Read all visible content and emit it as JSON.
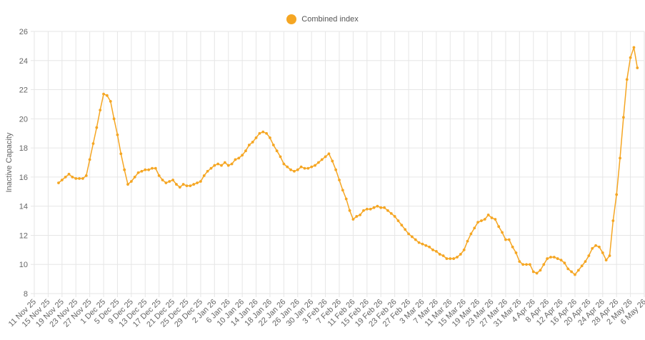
{
  "chart_data": {
    "type": "line",
    "title": "",
    "xlabel": "",
    "ylabel": "Inactive Capacity",
    "ylim": [
      8,
      26
    ],
    "yticks": [
      8,
      10,
      12,
      14,
      16,
      18,
      20,
      22,
      24,
      26
    ],
    "grid": true,
    "legend_position": "top-center",
    "x_tick_labels": [
      "11 Nov 25",
      "15 Nov 25",
      "19 Nov 25",
      "23 Nov 25",
      "27 Nov 25",
      "1 Dec 25",
      "5 Dec 25",
      "9 Dec 25",
      "13 Dec 25",
      "17 Dec 25",
      "21 Dec 25",
      "25 Dec 25",
      "29 Dec 25",
      "2 Jan 26",
      "6 Jan 26",
      "10 Jan 26",
      "14 Jan 26",
      "18 Jan 26",
      "22 Jan 26",
      "26 Jan 26",
      "30 Jan 26",
      "3 Feb 26",
      "7 Feb 26",
      "11 Feb 26",
      "15 Feb 26",
      "19 Feb 26",
      "23 Feb 26",
      "27 Feb 26",
      "3 Mar 26",
      "7 Mar 26",
      "11 Mar 26",
      "15 Mar 26",
      "19 Mar 26",
      "23 Mar 26",
      "27 Mar 26",
      "31 Mar 26",
      "4 Apr 26",
      "8 Apr 26",
      "12 Apr 26",
      "16 Apr 26",
      "20 Apr 26",
      "24 Apr 26",
      "28 Apr 26",
      "2 May 26",
      "6 May 26"
    ],
    "series": [
      {
        "name": "Combined index",
        "color": "#f5a623",
        "start_date": "18 Nov 25",
        "values": [
          15.6,
          15.8,
          16.0,
          16.2,
          16.0,
          15.9,
          15.9,
          15.9,
          16.1,
          17.2,
          18.3,
          19.4,
          20.6,
          21.7,
          21.6,
          21.2,
          20.0,
          18.9,
          17.6,
          16.5,
          15.5,
          15.7,
          16.0,
          16.3,
          16.4,
          16.5,
          16.5,
          16.6,
          16.6,
          16.1,
          15.8,
          15.6,
          15.7,
          15.8,
          15.5,
          15.3,
          15.5,
          15.4,
          15.4,
          15.5,
          15.6,
          15.7,
          16.1,
          16.4,
          16.6,
          16.8,
          16.9,
          16.8,
          17.0,
          16.8,
          16.9,
          17.2,
          17.3,
          17.5,
          17.8,
          18.2,
          18.4,
          18.7,
          19.0,
          19.1,
          19.0,
          18.7,
          18.2,
          17.8,
          17.4,
          16.9,
          16.7,
          16.5,
          16.4,
          16.5,
          16.7,
          16.6,
          16.6,
          16.7,
          16.8,
          17.0,
          17.2,
          17.4,
          17.6,
          17.1,
          16.5,
          15.8,
          15.1,
          14.5,
          13.7,
          13.1,
          13.3,
          13.4,
          13.7,
          13.8,
          13.8,
          13.9,
          14.0,
          13.9,
          13.9,
          13.7,
          13.5,
          13.3,
          13.0,
          12.7,
          12.4,
          12.1,
          11.9,
          11.7,
          11.5,
          11.4,
          11.3,
          11.2,
          11.0,
          10.9,
          10.7,
          10.6,
          10.4,
          10.4,
          10.4,
          10.5,
          10.7,
          11.0,
          11.6,
          12.1,
          12.5,
          12.9,
          13.0,
          13.1,
          13.4,
          13.2,
          13.1,
          12.6,
          12.2,
          11.7,
          11.7,
          11.2,
          10.8,
          10.2,
          10.0,
          10.0,
          10.0,
          9.5,
          9.4,
          9.6,
          10.0,
          10.4,
          10.5,
          10.5,
          10.4,
          10.3,
          10.1,
          9.7,
          9.5,
          9.3,
          9.6,
          9.9,
          10.2,
          10.6,
          11.1,
          11.3,
          11.2,
          10.8,
          10.3,
          10.6,
          13.0,
          14.8,
          17.3,
          20.1,
          22.7,
          24.2,
          24.9,
          23.5
        ]
      }
    ]
  }
}
